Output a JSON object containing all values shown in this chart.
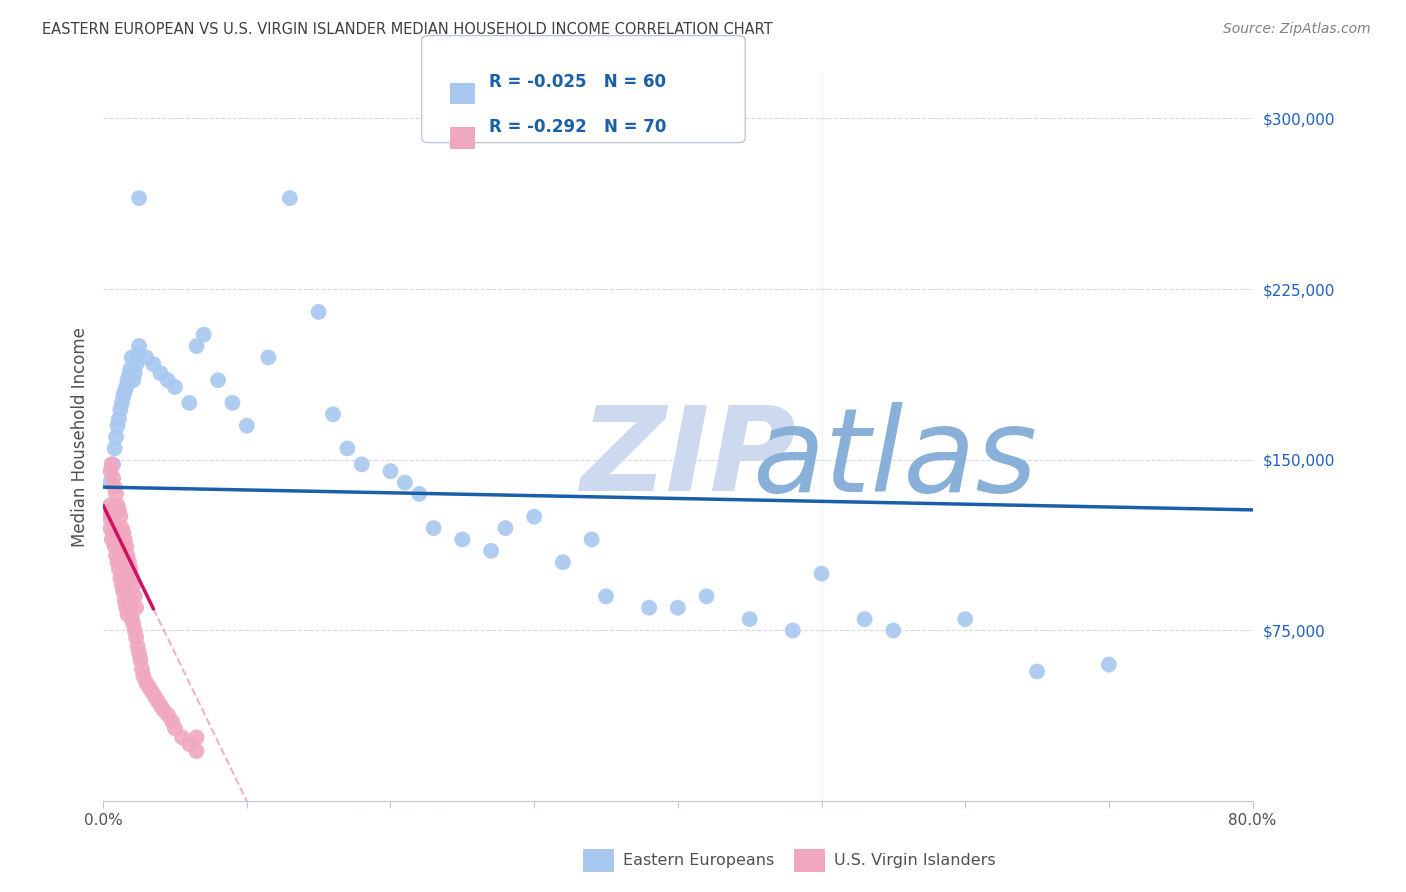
{
  "title": "EASTERN EUROPEAN VS U.S. VIRGIN ISLANDER MEDIAN HOUSEHOLD INCOME CORRELATION CHART",
  "source": "Source: ZipAtlas.com",
  "ylabel": "Median Household Income",
  "yticks": [
    0,
    75000,
    150000,
    225000,
    300000
  ],
  "ytick_labels": [
    "",
    "$75,000",
    "$150,000",
    "$225,000",
    "$300,000"
  ],
  "xmin": 0.0,
  "xmax": 0.8,
  "ymin": 0,
  "ymax": 320000,
  "blue_R": "-0.025",
  "blue_N": "60",
  "pink_R": "-0.292",
  "pink_N": "70",
  "legend_label_blue": "Eastern Europeans",
  "legend_label_pink": "U.S. Virgin Islanders",
  "blue_color": "#a8c8f0",
  "pink_color": "#f0a8c0",
  "trendline_blue_color": "#1a5faa",
  "trendline_pink_color": "#d01060",
  "trendline_pink_dashed_color": "#e080b0",
  "watermark_zip": "ZIP",
  "watermark_atlas": "atlas",
  "watermark_color_zip": "#c8d8ef",
  "watermark_color_atlas": "#90b8e0",
  "background_color": "#ffffff",
  "grid_color": "#c8d0e0",
  "title_color": "#404040",
  "axis_label_color": "#505050",
  "source_color": "#808080",
  "legend_text_color": "#1a5faa",
  "blue_scatter_x": [
    0.005,
    0.007,
    0.008,
    0.009,
    0.01,
    0.011,
    0.012,
    0.013,
    0.014,
    0.015,
    0.016,
    0.017,
    0.018,
    0.019,
    0.02,
    0.021,
    0.022,
    0.023,
    0.024,
    0.025,
    0.03,
    0.035,
    0.04,
    0.045,
    0.05,
    0.06,
    0.065,
    0.07,
    0.08,
    0.09,
    0.1,
    0.115,
    0.13,
    0.15,
    0.16,
    0.17,
    0.18,
    0.2,
    0.21,
    0.22,
    0.23,
    0.25,
    0.27,
    0.28,
    0.3,
    0.32,
    0.34,
    0.35,
    0.38,
    0.4,
    0.42,
    0.45,
    0.48,
    0.5,
    0.53,
    0.55,
    0.6,
    0.65,
    0.7,
    0.025
  ],
  "blue_scatter_y": [
    140000,
    148000,
    155000,
    160000,
    165000,
    168000,
    172000,
    175000,
    178000,
    180000,
    182000,
    185000,
    187000,
    190000,
    195000,
    185000,
    188000,
    192000,
    196000,
    200000,
    195000,
    192000,
    188000,
    185000,
    182000,
    175000,
    200000,
    205000,
    185000,
    175000,
    165000,
    195000,
    265000,
    215000,
    170000,
    155000,
    148000,
    145000,
    140000,
    135000,
    120000,
    115000,
    110000,
    120000,
    125000,
    105000,
    115000,
    90000,
    85000,
    85000,
    90000,
    80000,
    75000,
    100000,
    80000,
    75000,
    80000,
    57000,
    60000,
    265000
  ],
  "pink_scatter_x": [
    0.004,
    0.005,
    0.005,
    0.006,
    0.006,
    0.007,
    0.007,
    0.008,
    0.008,
    0.009,
    0.009,
    0.01,
    0.01,
    0.011,
    0.011,
    0.012,
    0.012,
    0.013,
    0.013,
    0.014,
    0.014,
    0.015,
    0.015,
    0.016,
    0.016,
    0.017,
    0.018,
    0.019,
    0.02,
    0.021,
    0.022,
    0.023,
    0.024,
    0.025,
    0.026,
    0.027,
    0.028,
    0.03,
    0.032,
    0.034,
    0.036,
    0.038,
    0.04,
    0.042,
    0.045,
    0.048,
    0.05,
    0.055,
    0.06,
    0.065,
    0.005,
    0.006,
    0.007,
    0.008,
    0.009,
    0.01,
    0.011,
    0.012,
    0.013,
    0.014,
    0.015,
    0.016,
    0.017,
    0.018,
    0.019,
    0.02,
    0.021,
    0.022,
    0.023,
    0.065
  ],
  "pink_scatter_y": [
    125000,
    130000,
    120000,
    115000,
    125000,
    118000,
    128000,
    112000,
    122000,
    108000,
    118000,
    105000,
    115000,
    102000,
    112000,
    98000,
    108000,
    95000,
    105000,
    92000,
    100000,
    88000,
    96000,
    85000,
    92000,
    82000,
    88000,
    85000,
    80000,
    78000,
    75000,
    72000,
    68000,
    65000,
    62000,
    58000,
    55000,
    52000,
    50000,
    48000,
    46000,
    44000,
    42000,
    40000,
    38000,
    35000,
    32000,
    28000,
    25000,
    22000,
    145000,
    148000,
    142000,
    138000,
    135000,
    130000,
    128000,
    125000,
    120000,
    118000,
    115000,
    112000,
    108000,
    105000,
    102000,
    98000,
    95000,
    90000,
    85000,
    28000
  ],
  "blue_trendline_y0": 138000,
  "blue_trendline_y1": 128000,
  "pink_trendline_x0": 0.0,
  "pink_trendline_x1": 0.05,
  "pink_trendline_y0": 130000,
  "pink_trendline_y1": 65000
}
